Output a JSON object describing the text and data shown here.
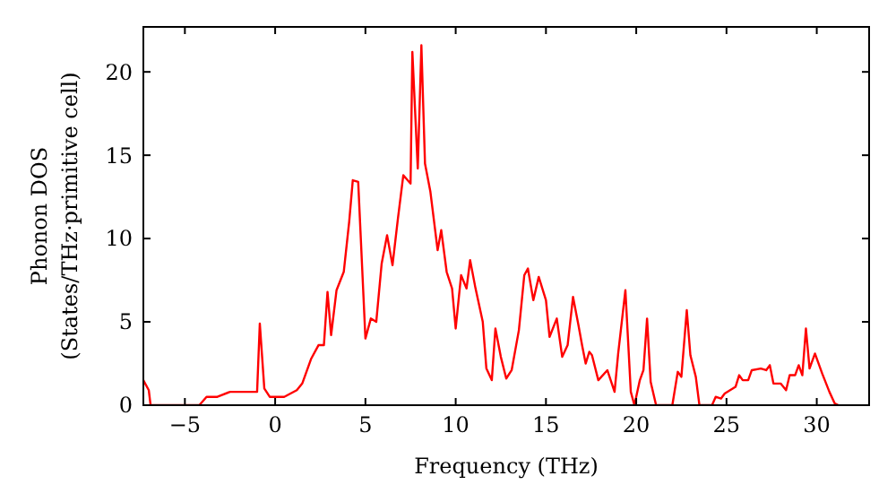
{
  "chart_data": {
    "type": "line",
    "xlabel": "Frequency (THz)",
    "ylabel": "Phonon DOS\n(States/THz·primitive cell)",
    "xlim": [
      -7.3,
      32.9
    ],
    "ylim": [
      0,
      22.7
    ],
    "xticks": [
      {
        "value": -5,
        "label": "−5"
      },
      0,
      5,
      10,
      15,
      20,
      25,
      30
    ],
    "yticks": [
      0,
      5,
      10,
      15,
      20
    ],
    "grid": false,
    "line_style": "solid",
    "marker": "none",
    "series": [
      {
        "color": "#ff0000",
        "x": [
          -7.3,
          -7,
          -6.9,
          -4.2,
          -3.8,
          -3.2,
          -2.5,
          -1.5,
          -1.0,
          -0.85,
          -0.6,
          -0.3,
          0.5,
          1.2,
          1.5,
          2,
          2.4,
          2.7,
          2.9,
          3.1,
          3.4,
          3.8,
          4.1,
          4.3,
          4.6,
          5.0,
          5.3,
          5.6,
          5.9,
          6.2,
          6.5,
          6.8,
          7.1,
          7.5,
          7.6,
          7.9,
          8.1,
          8.3,
          8.6,
          9.0,
          9.2,
          9.5,
          9.8,
          10.0,
          10.3,
          10.6,
          10.8,
          11.1,
          11.5,
          11.7,
          12.0,
          12.2,
          12.5,
          12.8,
          13.1,
          13.5,
          13.8,
          14.0,
          14.3,
          14.6,
          15.0,
          15.2,
          15.6,
          15.9,
          16.2,
          16.5,
          16.8,
          17.0,
          17.2,
          17.4,
          17.55,
          17.9,
          18.4,
          18.8,
          19.0,
          19.4,
          19.7,
          19.9,
          20.2,
          20.4,
          20.6,
          20.8,
          21.1,
          22.0,
          22.3,
          22.5,
          22.8,
          23.0,
          23.3,
          23.5,
          24.2,
          24.4,
          24.7,
          24.9,
          25.5,
          25.7,
          25.9,
          26.2,
          26.4,
          26.9,
          27.2,
          27.4,
          27.6,
          28.0,
          28.3,
          28.5,
          28.8,
          29.0,
          29.2,
          29.4,
          29.6,
          29.9,
          30.3,
          30.7,
          31.0,
          31.2
        ],
        "values": [
          1.5,
          0.9,
          0,
          0,
          0.5,
          0.5,
          0.8,
          0.8,
          0.8,
          4.9,
          1,
          0.5,
          0.5,
          0.9,
          1.3,
          2.8,
          3.6,
          3.6,
          6.8,
          4.2,
          6.9,
          8.0,
          11,
          13.5,
          13.4,
          4.0,
          5.2,
          5.0,
          8.5,
          10.2,
          8.4,
          11.2,
          13.8,
          13.3,
          21.2,
          14.2,
          21.6,
          14.5,
          12.8,
          9.3,
          10.5,
          8.0,
          7.0,
          4.6,
          7.8,
          7.0,
          8.7,
          7.0,
          5,
          2.2,
          1.5,
          4.6,
          2.9,
          1.6,
          2.1,
          4.5,
          7.8,
          8.2,
          6.3,
          7.7,
          6.3,
          4.1,
          5.2,
          2.9,
          3.6,
          6.5,
          4.8,
          3.6,
          2.5,
          3.2,
          3.0,
          1.5,
          2.1,
          0.8,
          3.1,
          6.9,
          0.8,
          0,
          1.5,
          2.1,
          5.2,
          1.4,
          0,
          0,
          2.0,
          1.7,
          5.7,
          3.0,
          1.7,
          0,
          0,
          0.5,
          0.4,
          0.7,
          1.1,
          1.8,
          1.5,
          1.5,
          2.1,
          2.2,
          2.1,
          2.4,
          1.3,
          1.3,
          0.9,
          1.8,
          1.8,
          2.4,
          1.8,
          4.6,
          2.2,
          3.1,
          1.9,
          0.8,
          0.1,
          0
        ]
      }
    ]
  }
}
